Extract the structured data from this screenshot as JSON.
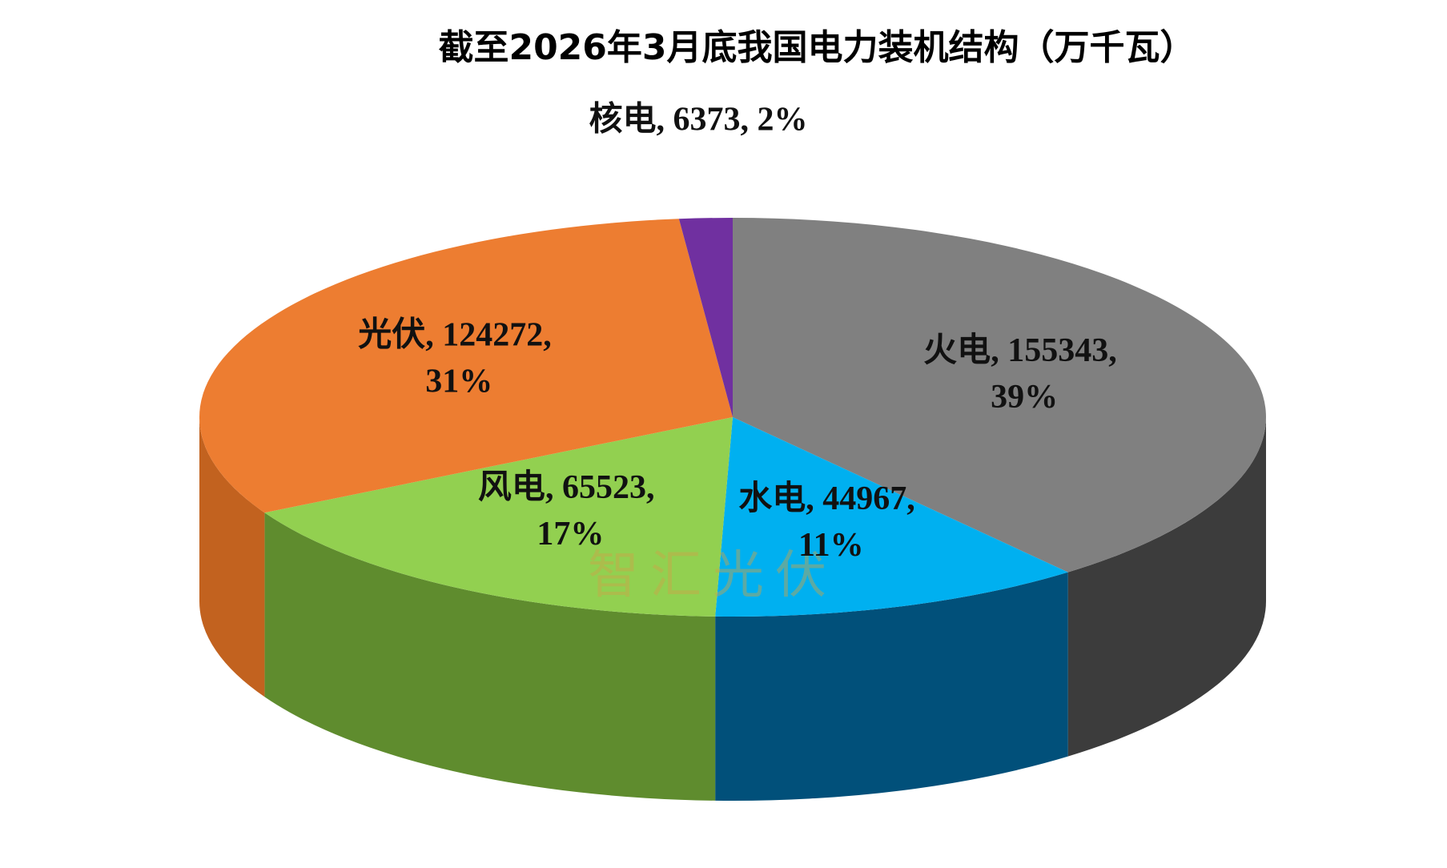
{
  "chart_data": {
    "type": "pie3d",
    "title": "截至2026年3月底我国电力装机结构（万千瓦）",
    "categories": [
      "火电",
      "水电",
      "风电",
      "光伏",
      "核电"
    ],
    "values": [
      155343,
      44967,
      65523,
      124272,
      6373
    ],
    "percent_labels": [
      "39%",
      "11%",
      "17%",
      "31%",
      "2%"
    ],
    "label_separator": ", ",
    "colors": [
      "#808080",
      "#00b0f0",
      "#92d050",
      "#ed7d31",
      "#7030a0"
    ],
    "side_colors": [
      "#3c3c3c",
      "#01507a",
      "#5f8c2e",
      "#c2621f",
      "#4a1f6c"
    ],
    "watermark": "智汇光伏"
  }
}
